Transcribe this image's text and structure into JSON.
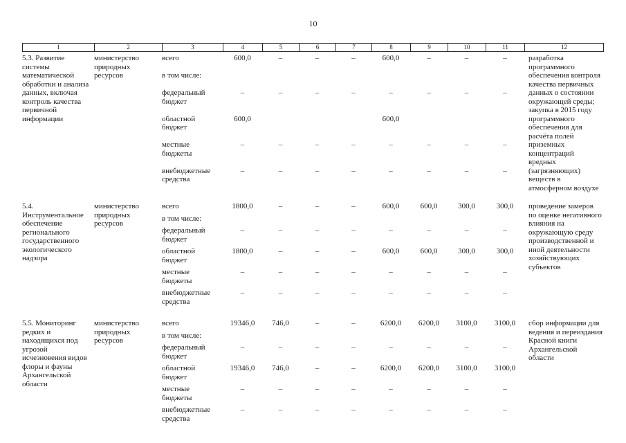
{
  "page": {
    "number": "10"
  },
  "table": {
    "header_columns": [
      "1",
      "2",
      "3",
      "4",
      "5",
      "6",
      "7",
      "8",
      "9",
      "10",
      "11",
      "12"
    ],
    "rows": [
      {
        "name": "5.3. Развитие системы математической обработки и анализа данных, включая контроль качества первичной информации",
        "executor": "министерство природных ресурсов",
        "budget_lines": [
          {
            "label": "всего",
            "values": [
              "600,0",
              "–",
              "–",
              "–",
              "600,0",
              "–",
              "–",
              "–"
            ]
          },
          {
            "label": "в том числе:",
            "values": [
              "",
              "",
              "",
              "",
              "",
              "",
              "",
              ""
            ]
          },
          {
            "label": "федеральный бюджет",
            "values": [
              "–",
              "–",
              "–",
              "–",
              "–",
              "–",
              "–",
              "–"
            ]
          },
          {
            "label": "областной бюджет",
            "values": [
              "600,0",
              "",
              "",
              "",
              "600,0",
              "",
              "",
              ""
            ]
          },
          {
            "label": "местные бюджеты",
            "values": [
              "–",
              "–",
              "–",
              "–",
              "–",
              "–",
              "–",
              "–"
            ]
          },
          {
            "label": "внебюджетные средства",
            "values": [
              "–",
              "–",
              "–",
              "–",
              "–",
              "–",
              "–",
              "–"
            ]
          }
        ],
        "expected_results": "разработка программного обеспечения контроля качества первичных данных о состоянии окружающей среды; закупка в 2015 году программного обеспечения для расчёта полей приземных концентраций вредных (загрязняющих) веществ в атмосферном воздухе"
      },
      {
        "name": "5.4. Инструментальное обеспечение регионального государственного экологического надзора",
        "executor": "министерство природных ресурсов",
        "budget_lines": [
          {
            "label": "всего",
            "values": [
              "1800,0",
              "–",
              "–",
              "–",
              "600,0",
              "600,0",
              "300,0",
              "300,0"
            ]
          },
          {
            "label": "в том числе:",
            "values": [
              "",
              "",
              "",
              "",
              "",
              "",
              "",
              ""
            ]
          },
          {
            "label": "федеральный бюджет",
            "values": [
              "–",
              "–",
              "–",
              "–",
              "–",
              "–",
              "–",
              "–"
            ]
          },
          {
            "label": "областной бюджет",
            "values": [
              "1800,0",
              "–",
              "–",
              "–",
              "600,0",
              "600,0",
              "300,0",
              "300,0"
            ]
          },
          {
            "label": "местные бюджеты",
            "values": [
              "–",
              "–",
              "–",
              "–",
              "–",
              "–",
              "–",
              "–"
            ]
          },
          {
            "label": "внебюджетные средства",
            "values": [
              "–",
              "–",
              "–",
              "–",
              "–",
              "–",
              "–",
              "–"
            ]
          }
        ],
        "expected_results": "проведение замеров по оценке негативного влияния на окружающую среду производственной и иной деятельности хозяйствующих субъектов"
      },
      {
        "name": "5.5. Мониторинг редких и находящихся под угрозой исчезновения видов флоры и фауны Архангельской области",
        "executor": "министерство природных ресурсов",
        "budget_lines": [
          {
            "label": "всего",
            "values": [
              "19346,0",
              "746,0",
              "–",
              "–",
              "6200,0",
              "6200,0",
              "3100,0",
              "3100,0"
            ]
          },
          {
            "label": "в том числе:",
            "values": [
              "",
              "",
              "",
              "",
              "",
              "",
              "",
              ""
            ]
          },
          {
            "label": "федеральный бюджет",
            "values": [
              "–",
              "–",
              "–",
              "–",
              "–",
              "–",
              "–",
              "–"
            ]
          },
          {
            "label": "областной бюджет",
            "values": [
              "19346,0",
              "746,0",
              "–",
              "–",
              "6200,0",
              "6200,0",
              "3100,0",
              "3100,0"
            ]
          },
          {
            "label": "местные бюджеты",
            "values": [
              "–",
              "–",
              "–",
              "–",
              "–",
              "–",
              "–",
              "–"
            ]
          },
          {
            "label": "внебюджетные средства",
            "values": [
              "–",
              "–",
              "–",
              "–",
              "–",
              "–",
              "–",
              "–"
            ]
          }
        ],
        "expected_results": "сбор информации для ведения и переиздания Красной книги Архангельской области"
      }
    ]
  }
}
